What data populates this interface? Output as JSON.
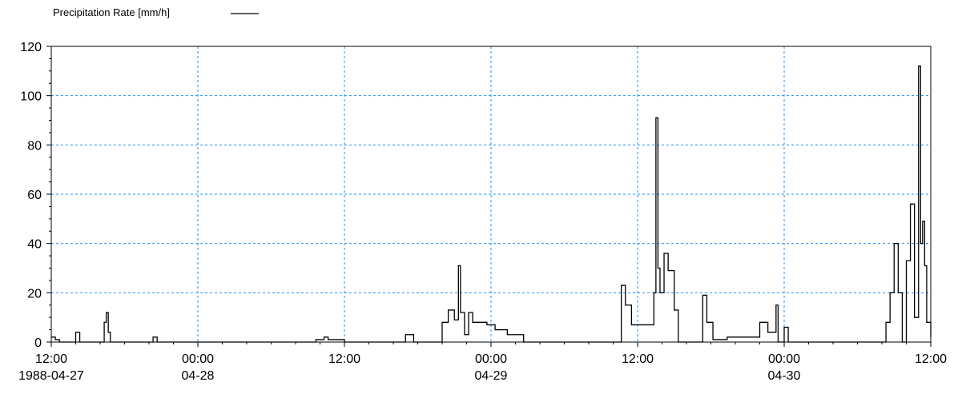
{
  "chart_data": {
    "type": "line",
    "title": "",
    "xlabel": "",
    "ylabel": "",
    "legend": {
      "placement": "top-left"
    },
    "grid": true,
    "grid_color": "#1e90ff",
    "line_color": "#000000",
    "x_axis": {
      "range": [
        "1988-04-27 12:00",
        "1988-04-30 12:00"
      ],
      "ticks": [
        {
          "t": "1988-04-27 12:00",
          "line1": "12:00",
          "line2": "1988-04-27"
        },
        {
          "t": "1988-04-28 00:00",
          "line1": "00:00",
          "line2": "04-28"
        },
        {
          "t": "1988-04-28 12:00",
          "line1": "12:00",
          "line2": ""
        },
        {
          "t": "1988-04-29 00:00",
          "line1": "00:00",
          "line2": "04-29"
        },
        {
          "t": "1988-04-29 12:00",
          "line1": "12:00",
          "line2": ""
        },
        {
          "t": "1988-04-30 00:00",
          "line1": "00:00",
          "line2": "04-30"
        },
        {
          "t": "1988-04-30 12:00",
          "line1": "12:00",
          "line2": ""
        }
      ]
    },
    "y_axis": {
      "ylim": [
        0,
        120
      ],
      "ticks": [
        0,
        20,
        40,
        60,
        80,
        100,
        120
      ],
      "minor_step": 5
    },
    "series": [
      {
        "name": "Precipitation Rate [mm/h]",
        "step": true,
        "points": [
          [
            "1988-04-27 12:00",
            2
          ],
          [
            "1988-04-27 12:20",
            1
          ],
          [
            "1988-04-27 12:40",
            0
          ],
          [
            "1988-04-27 14:00",
            4
          ],
          [
            "1988-04-27 14:20",
            0
          ],
          [
            "1988-04-27 16:20",
            8
          ],
          [
            "1988-04-27 16:30",
            12
          ],
          [
            "1988-04-27 16:40",
            4
          ],
          [
            "1988-04-27 16:50",
            0
          ],
          [
            "1988-04-27 20:20",
            2
          ],
          [
            "1988-04-27 20:40",
            0
          ],
          [
            "1988-04-28 09:40",
            1
          ],
          [
            "1988-04-28 10:20",
            2
          ],
          [
            "1988-04-28 10:40",
            1
          ],
          [
            "1988-04-28 12:00",
            0
          ],
          [
            "1988-04-28 17:00",
            3
          ],
          [
            "1988-04-28 17:40",
            0
          ],
          [
            "1988-04-28 20:00",
            8
          ],
          [
            "1988-04-28 20:30",
            13
          ],
          [
            "1988-04-28 21:00",
            9
          ],
          [
            "1988-04-28 21:20",
            31
          ],
          [
            "1988-04-28 21:30",
            12
          ],
          [
            "1988-04-28 21:50",
            3
          ],
          [
            "1988-04-28 22:10",
            12
          ],
          [
            "1988-04-28 22:30",
            8
          ],
          [
            "1988-04-28 23:40",
            7
          ],
          [
            "1988-04-29 00:20",
            5
          ],
          [
            "1988-04-29 01:20",
            3
          ],
          [
            "1988-04-29 02:40",
            0
          ],
          [
            "1988-04-29 10:40",
            23
          ],
          [
            "1988-04-29 11:00",
            15
          ],
          [
            "1988-04-29 11:30",
            7
          ],
          [
            "1988-04-29 13:20",
            20
          ],
          [
            "1988-04-29 13:30",
            91
          ],
          [
            "1988-04-29 13:40",
            30
          ],
          [
            "1988-04-29 13:50",
            20
          ],
          [
            "1988-04-29 14:10",
            36
          ],
          [
            "1988-04-29 14:30",
            29
          ],
          [
            "1988-04-29 15:00",
            13
          ],
          [
            "1988-04-29 15:20",
            0
          ],
          [
            "1988-04-29 17:20",
            19
          ],
          [
            "1988-04-29 17:40",
            8
          ],
          [
            "1988-04-29 18:10",
            1
          ],
          [
            "1988-04-29 19:20",
            2
          ],
          [
            "1988-04-29 22:00",
            8
          ],
          [
            "1988-04-29 22:40",
            4
          ],
          [
            "1988-04-29 23:20",
            15
          ],
          [
            "1988-04-29 23:30",
            0
          ],
          [
            "1988-04-30 00:00",
            6
          ],
          [
            "1988-04-30 00:20",
            0
          ],
          [
            "1988-04-30 08:20",
            8
          ],
          [
            "1988-04-30 08:40",
            20
          ],
          [
            "1988-04-30 09:00",
            40
          ],
          [
            "1988-04-30 09:20",
            20
          ],
          [
            "1988-04-30 09:40",
            0
          ],
          [
            "1988-04-30 10:00",
            33
          ],
          [
            "1988-04-30 10:20",
            56
          ],
          [
            "1988-04-30 10:40",
            10
          ],
          [
            "1988-04-30 11:00",
            112
          ],
          [
            "1988-04-30 11:10",
            40
          ],
          [
            "1988-04-30 11:20",
            49
          ],
          [
            "1988-04-30 11:30",
            31
          ],
          [
            "1988-04-30 11:40",
            8
          ],
          [
            "1988-04-30 12:00",
            2
          ]
        ]
      }
    ]
  }
}
